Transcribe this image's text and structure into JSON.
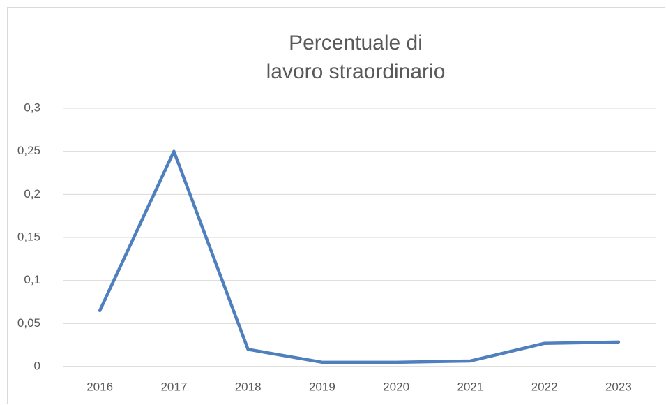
{
  "chart_data": {
    "type": "line",
    "title": [
      "Percentuale di",
      "lavoro straordinario"
    ],
    "categories": [
      "2016",
      "2017",
      "2018",
      "2019",
      "2020",
      "2021",
      "2022",
      "2023"
    ],
    "series": [
      {
        "color": "#4f7fbd",
        "values": [
          0.065,
          0.25,
          0.02,
          0.005,
          0.005,
          0.0065,
          0.027,
          0.0285
        ]
      }
    ],
    "ylim": [
      0,
      0.3
    ],
    "yticks": [
      0,
      {
        "value": 0.05,
        "label": "0,05"
      },
      {
        "value": 0.1,
        "label": "0,1"
      },
      {
        "value": 0.15,
        "label": "0,15"
      },
      {
        "value": 0.2,
        "label": "0,2"
      },
      {
        "value": 0.25,
        "label": "0,25"
      },
      {
        "value": 0.3,
        "label": "0,3"
      }
    ],
    "grid": true
  }
}
